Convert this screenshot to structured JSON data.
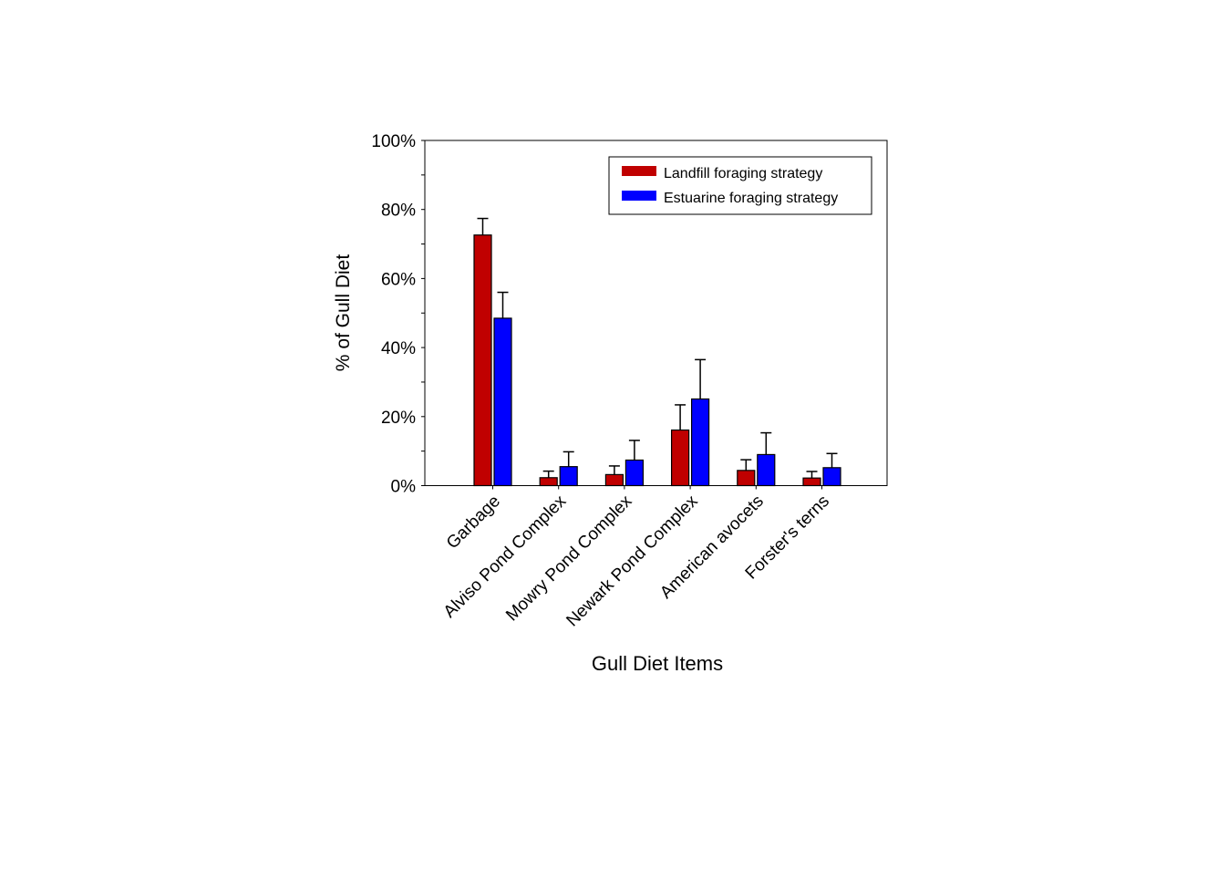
{
  "chart_data": {
    "type": "bar",
    "title": "",
    "xlabel": "Gull Diet Items",
    "ylabel": "% of Gull Diet",
    "ylim": [
      0,
      100
    ],
    "yticks": [
      "0%",
      "20%",
      "40%",
      "60%",
      "80%",
      "100%"
    ],
    "grid": false,
    "legend_position": "top-right",
    "categories": [
      "Garbage",
      "Alviso Pond Complex",
      "Mowry Pond Complex",
      "Newark Pond Complex",
      "American avocets",
      "Forster's terns"
    ],
    "series": [
      {
        "name": "Landfill foraging strategy",
        "color": "#c00000",
        "values": [
          72.6,
          2.3,
          3.2,
          16.1,
          4.4,
          2.2
        ],
        "error_upper": [
          77.4,
          4.2,
          5.7,
          23.4,
          7.5,
          4.1
        ]
      },
      {
        "name": "Estuarine foraging strategy",
        "color": "#0000ff",
        "values": [
          48.5,
          5.5,
          7.4,
          25.1,
          9.0,
          5.2
        ],
        "error_upper": [
          56.0,
          9.8,
          13.1,
          36.5,
          15.3,
          9.3
        ]
      }
    ]
  }
}
